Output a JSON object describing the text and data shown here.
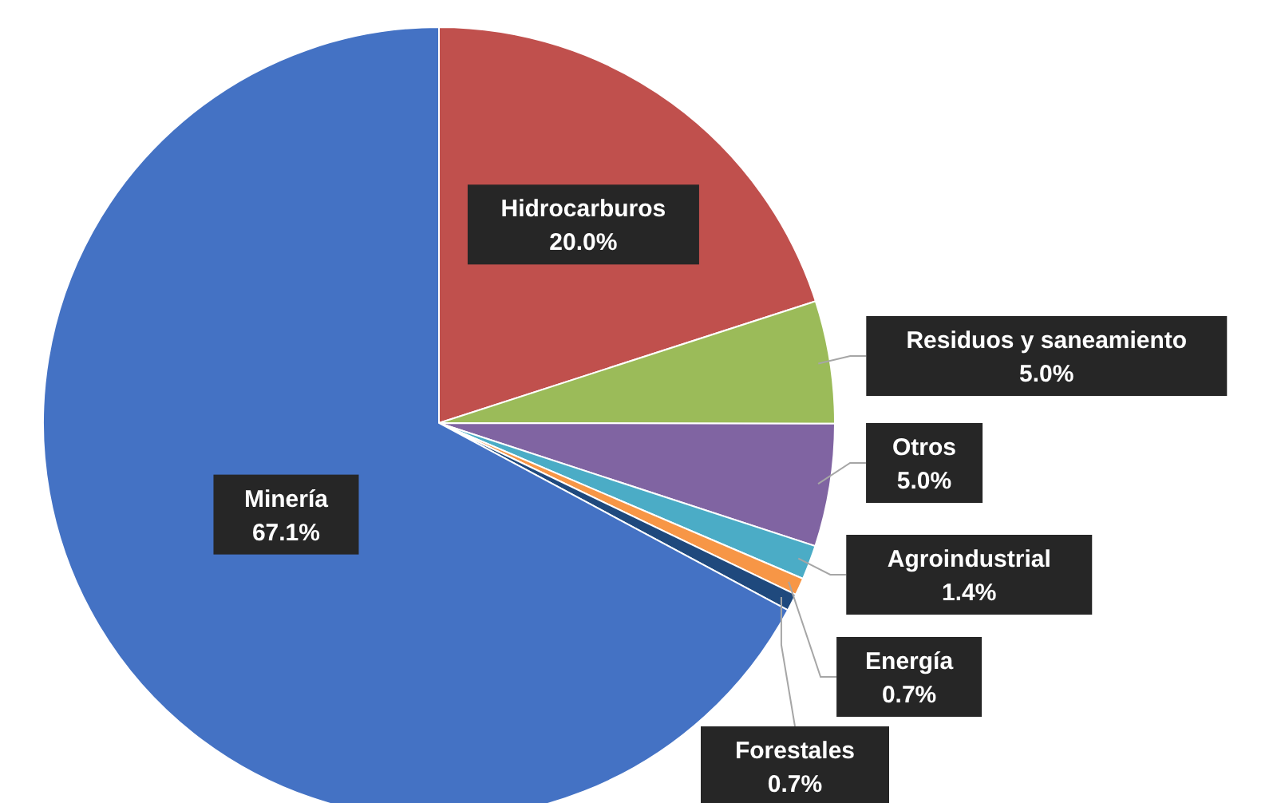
{
  "chart_data": {
    "type": "pie",
    "categories": [
      "Hidrocarburos",
      "Residuos y saneamiento",
      "Otros",
      "Agroindustrial",
      "Energía",
      "Forestales",
      "Minería"
    ],
    "values": [
      20.0,
      5.0,
      5.0,
      1.4,
      0.7,
      0.7,
      67.1
    ],
    "colors": [
      "#c0504d",
      "#9bbb59",
      "#8064a2",
      "#4bacc6",
      "#f79646",
      "#1f497d",
      "#4472c4"
    ],
    "value_labels": [
      "20.0%",
      "5.0%",
      "5.0%",
      "1.4%",
      "0.7%",
      "0.7%",
      "67.1%"
    ],
    "legend": false
  }
}
